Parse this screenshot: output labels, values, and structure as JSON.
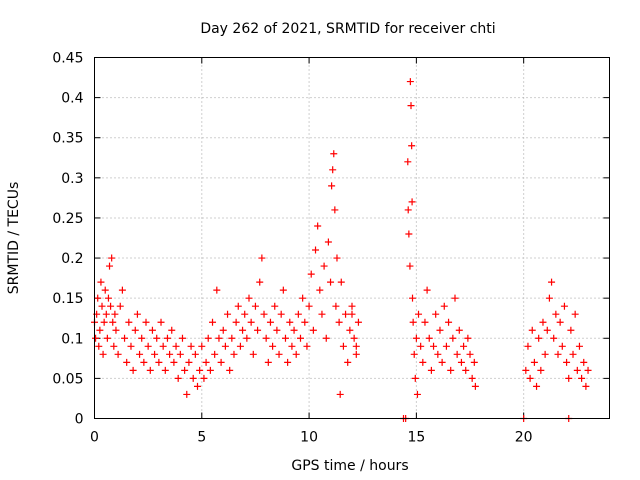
{
  "chart_data": {
    "type": "scatter",
    "title": "Day 262 of 2021, SRMTID for receiver chti",
    "xlabel": "GPS time / hours",
    "ylabel": "SRMTID / TECUs",
    "xlim": [
      0,
      24
    ],
    "ylim": [
      0,
      0.45
    ],
    "xticks": [
      0,
      5,
      10,
      15,
      20
    ],
    "xtick_labels": [
      "0",
      "5",
      "10",
      "15",
      "20"
    ],
    "yticks": [
      0,
      0.05,
      0.1,
      0.15,
      0.2,
      0.25,
      0.3,
      0.35,
      0.4,
      0.45
    ],
    "ytick_labels": [
      "0",
      "0.05",
      "0.1",
      "0.15",
      "0.2",
      "0.25",
      "0.3",
      "0.35",
      "0.4",
      "0.45"
    ],
    "grid": true,
    "marker": "plus",
    "color": "#ff0000",
    "series": [
      {
        "name": "SRMTID",
        "points": [
          [
            0.0,
            0.12
          ],
          [
            0.05,
            0.1
          ],
          [
            0.1,
            0.13
          ],
          [
            0.15,
            0.15
          ],
          [
            0.2,
            0.09
          ],
          [
            0.25,
            0.11
          ],
          [
            0.3,
            0.17
          ],
          [
            0.35,
            0.14
          ],
          [
            0.4,
            0.08
          ],
          [
            0.45,
            0.12
          ],
          [
            0.5,
            0.16
          ],
          [
            0.55,
            0.13
          ],
          [
            0.6,
            0.1
          ],
          [
            0.65,
            0.15
          ],
          [
            0.7,
            0.19
          ],
          [
            0.75,
            0.14
          ],
          [
            0.8,
            0.2
          ],
          [
            0.85,
            0.12
          ],
          [
            0.9,
            0.09
          ],
          [
            0.95,
            0.13
          ],
          [
            1.0,
            0.11
          ],
          [
            1.1,
            0.08
          ],
          [
            1.2,
            0.14
          ],
          [
            1.3,
            0.16
          ],
          [
            1.4,
            0.1
          ],
          [
            1.5,
            0.07
          ],
          [
            1.6,
            0.12
          ],
          [
            1.7,
            0.09
          ],
          [
            1.8,
            0.06
          ],
          [
            1.9,
            0.11
          ],
          [
            2.0,
            0.13
          ],
          [
            2.1,
            0.08
          ],
          [
            2.2,
            0.1
          ],
          [
            2.3,
            0.07
          ],
          [
            2.4,
            0.12
          ],
          [
            2.5,
            0.09
          ],
          [
            2.6,
            0.06
          ],
          [
            2.7,
            0.11
          ],
          [
            2.8,
            0.08
          ],
          [
            2.9,
            0.1
          ],
          [
            3.0,
            0.07
          ],
          [
            3.1,
            0.12
          ],
          [
            3.2,
            0.09
          ],
          [
            3.3,
            0.06
          ],
          [
            3.4,
            0.1
          ],
          [
            3.5,
            0.08
          ],
          [
            3.6,
            0.11
          ],
          [
            3.7,
            0.07
          ],
          [
            3.8,
            0.09
          ],
          [
            3.9,
            0.05
          ],
          [
            4.0,
            0.08
          ],
          [
            4.1,
            0.1
          ],
          [
            4.2,
            0.06
          ],
          [
            4.3,
            0.03
          ],
          [
            4.4,
            0.07
          ],
          [
            4.5,
            0.09
          ],
          [
            4.6,
            0.05
          ],
          [
            4.7,
            0.08
          ],
          [
            4.8,
            0.04
          ],
          [
            4.9,
            0.06
          ],
          [
            5.0,
            0.09
          ],
          [
            5.1,
            0.05
          ],
          [
            5.2,
            0.07
          ],
          [
            5.3,
            0.1
          ],
          [
            5.4,
            0.06
          ],
          [
            5.5,
            0.12
          ],
          [
            5.6,
            0.08
          ],
          [
            5.7,
            0.16
          ],
          [
            5.8,
            0.1
          ],
          [
            5.9,
            0.07
          ],
          [
            6.0,
            0.11
          ],
          [
            6.1,
            0.09
          ],
          [
            6.2,
            0.13
          ],
          [
            6.3,
            0.06
          ],
          [
            6.4,
            0.1
          ],
          [
            6.5,
            0.08
          ],
          [
            6.6,
            0.12
          ],
          [
            6.7,
            0.14
          ],
          [
            6.8,
            0.09
          ],
          [
            6.9,
            0.11
          ],
          [
            7.0,
            0.13
          ],
          [
            7.1,
            0.1
          ],
          [
            7.2,
            0.15
          ],
          [
            7.3,
            0.12
          ],
          [
            7.4,
            0.08
          ],
          [
            7.5,
            0.14
          ],
          [
            7.6,
            0.11
          ],
          [
            7.7,
            0.17
          ],
          [
            7.8,
            0.2
          ],
          [
            7.9,
            0.13
          ],
          [
            8.0,
            0.1
          ],
          [
            8.1,
            0.07
          ],
          [
            8.2,
            0.12
          ],
          [
            8.3,
            0.09
          ],
          [
            8.4,
            0.14
          ],
          [
            8.5,
            0.11
          ],
          [
            8.6,
            0.08
          ],
          [
            8.7,
            0.13
          ],
          [
            8.8,
            0.16
          ],
          [
            8.9,
            0.1
          ],
          [
            9.0,
            0.07
          ],
          [
            9.1,
            0.12
          ],
          [
            9.2,
            0.09
          ],
          [
            9.3,
            0.11
          ],
          [
            9.4,
            0.08
          ],
          [
            9.5,
            0.13
          ],
          [
            9.6,
            0.1
          ],
          [
            9.7,
            0.15
          ],
          [
            9.8,
            0.12
          ],
          [
            9.9,
            0.09
          ],
          [
            10.0,
            0.14
          ],
          [
            10.1,
            0.18
          ],
          [
            10.2,
            0.11
          ],
          [
            10.3,
            0.21
          ],
          [
            10.4,
            0.24
          ],
          [
            10.5,
            0.16
          ],
          [
            10.6,
            0.13
          ],
          [
            10.7,
            0.19
          ],
          [
            10.8,
            0.1
          ],
          [
            10.9,
            0.22
          ],
          [
            11.0,
            0.17
          ],
          [
            11.05,
            0.29
          ],
          [
            11.1,
            0.31
          ],
          [
            11.15,
            0.33
          ],
          [
            11.2,
            0.26
          ],
          [
            11.25,
            0.14
          ],
          [
            11.3,
            0.2
          ],
          [
            11.4,
            0.12
          ],
          [
            11.5,
            0.17
          ],
          [
            11.6,
            0.09
          ],
          [
            11.7,
            0.13
          ],
          [
            11.8,
            0.07
          ],
          [
            11.9,
            0.11
          ],
          [
            12.0,
            0.14
          ],
          [
            12.1,
            0.1
          ],
          [
            12.2,
            0.08
          ],
          [
            12.3,
            0.12
          ],
          [
            11.45,
            0.03
          ],
          [
            12.0,
            0.13
          ],
          [
            12.2,
            0.09
          ],
          [
            14.4,
            0.0
          ],
          [
            14.5,
            0.0
          ],
          [
            14.6,
            0.32
          ],
          [
            14.62,
            0.26
          ],
          [
            14.65,
            0.23
          ],
          [
            14.7,
            0.19
          ],
          [
            14.72,
            0.42
          ],
          [
            14.75,
            0.39
          ],
          [
            14.78,
            0.34
          ],
          [
            14.8,
            0.27
          ],
          [
            14.82,
            0.15
          ],
          [
            14.85,
            0.12
          ],
          [
            14.9,
            0.08
          ],
          [
            14.95,
            0.05
          ],
          [
            15.0,
            0.1
          ],
          [
            15.05,
            0.03
          ],
          [
            15.1,
            0.13
          ],
          [
            15.2,
            0.09
          ],
          [
            15.3,
            0.07
          ],
          [
            15.4,
            0.12
          ],
          [
            15.5,
            0.16
          ],
          [
            15.6,
            0.1
          ],
          [
            15.7,
            0.06
          ],
          [
            15.8,
            0.09
          ],
          [
            15.9,
            0.13
          ],
          [
            16.0,
            0.08
          ],
          [
            16.1,
            0.11
          ],
          [
            16.2,
            0.07
          ],
          [
            16.3,
            0.14
          ],
          [
            16.4,
            0.09
          ],
          [
            16.5,
            0.12
          ],
          [
            16.6,
            0.06
          ],
          [
            16.7,
            0.1
          ],
          [
            16.8,
            0.15
          ],
          [
            16.9,
            0.08
          ],
          [
            17.0,
            0.11
          ],
          [
            17.1,
            0.07
          ],
          [
            17.2,
            0.09
          ],
          [
            17.3,
            0.06
          ],
          [
            17.4,
            0.1
          ],
          [
            17.5,
            0.08
          ],
          [
            17.6,
            0.05
          ],
          [
            17.7,
            0.07
          ],
          [
            17.75,
            0.04
          ],
          [
            20.0,
            0.0
          ],
          [
            22.1,
            0.0
          ],
          [
            20.1,
            0.06
          ],
          [
            20.2,
            0.09
          ],
          [
            20.3,
            0.05
          ],
          [
            20.4,
            0.11
          ],
          [
            20.5,
            0.07
          ],
          [
            20.6,
            0.04
          ],
          [
            20.7,
            0.1
          ],
          [
            20.8,
            0.06
          ],
          [
            20.9,
            0.12
          ],
          [
            21.0,
            0.08
          ],
          [
            21.1,
            0.11
          ],
          [
            21.2,
            0.15
          ],
          [
            21.3,
            0.17
          ],
          [
            21.4,
            0.1
          ],
          [
            21.5,
            0.13
          ],
          [
            21.6,
            0.08
          ],
          [
            21.7,
            0.12
          ],
          [
            21.8,
            0.09
          ],
          [
            21.9,
            0.14
          ],
          [
            22.0,
            0.07
          ],
          [
            22.1,
            0.05
          ],
          [
            22.2,
            0.11
          ],
          [
            22.3,
            0.08
          ],
          [
            22.4,
            0.13
          ],
          [
            22.5,
            0.06
          ],
          [
            22.6,
            0.09
          ],
          [
            22.7,
            0.05
          ],
          [
            22.8,
            0.07
          ],
          [
            22.9,
            0.04
          ],
          [
            23.0,
            0.06
          ]
        ]
      }
    ]
  }
}
